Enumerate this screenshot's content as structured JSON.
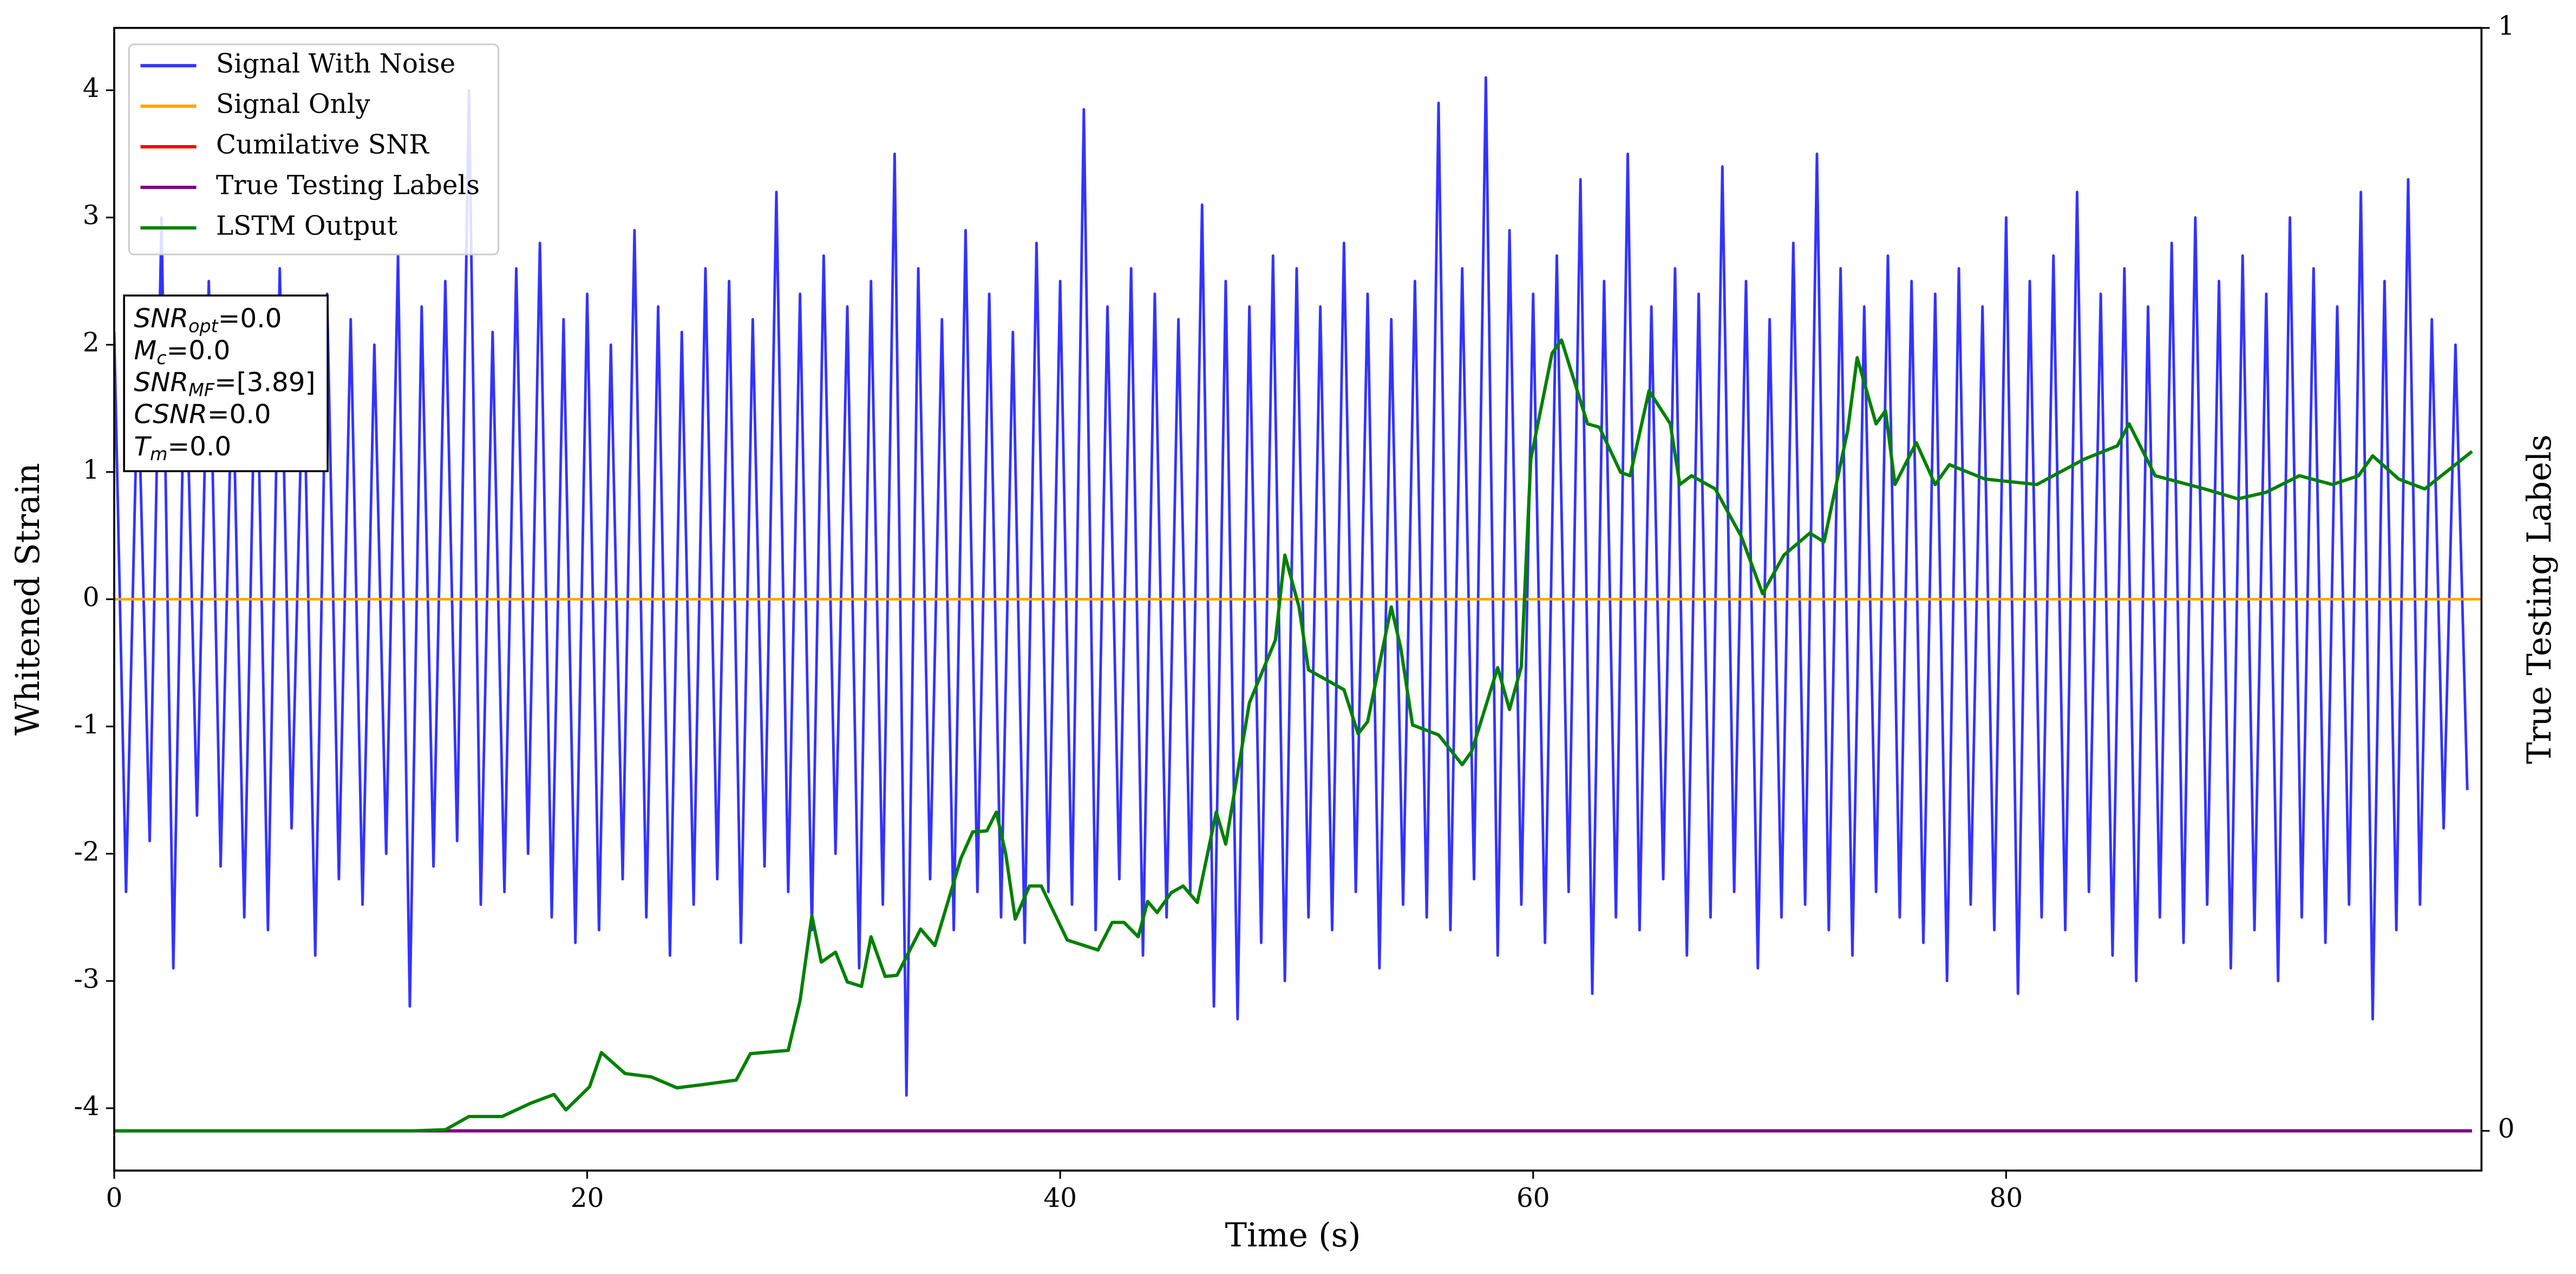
{
  "chart_data": {
    "type": "line",
    "xlabel": "Time (s)",
    "ylabel": "Whitened Strain",
    "y2label": "True Testing Labels",
    "xlim": [
      0,
      100.1
    ],
    "ylim": [
      -4.49,
      4.49
    ],
    "y2lim": [
      -0.036,
      1
    ],
    "xticks": [
      0,
      20,
      40,
      60,
      80
    ],
    "yticks": [
      -4,
      -3,
      -2,
      -1,
      0,
      1,
      2,
      3,
      4
    ],
    "y2ticks": [
      0,
      1
    ],
    "legend": "upper left",
    "annotations": [
      {
        "main": "SNR",
        "sub": "opt",
        "rest": "=0.0"
      },
      {
        "main": "M",
        "sub": "c",
        "rest": "=0.0"
      },
      {
        "main": "SNR",
        "sub": "MF",
        "rest": "=[3.89]"
      },
      {
        "main": "CSNR",
        "rest": "=0.0"
      },
      {
        "main": "T",
        "sub": "m",
        "rest": "=0.0"
      }
    ],
    "series": [
      {
        "name": "Signal With Noise",
        "color": "#3333ff",
        "x": [
          0,
          0.5,
          1,
          1.5,
          2,
          2.5,
          3,
          3.5,
          4,
          4.5,
          5,
          5.5,
          6,
          6.5,
          7,
          7.5,
          8,
          8.5,
          9,
          9.5,
          10,
          10.5,
          11,
          11.5,
          12,
          12.5,
          13,
          13.5,
          14,
          14.5,
          15,
          15.5,
          16,
          16.5,
          17,
          17.5,
          18,
          18.5,
          19,
          19.5,
          20,
          20.5,
          21,
          21.5,
          22,
          22.5,
          23,
          23.5,
          24,
          24.5,
          25,
          25.5,
          26,
          26.5,
          27,
          27.5,
          28,
          28.5,
          29,
          29.5,
          30,
          30.5,
          31,
          31.5,
          32,
          32.5,
          33,
          33.5,
          34,
          34.5,
          35,
          35.5,
          36,
          36.5,
          37,
          37.5,
          38,
          38.5,
          39,
          39.5,
          40,
          40.5,
          41,
          41.5,
          42,
          42.5,
          43,
          43.5,
          44,
          44.5,
          45,
          45.5,
          46,
          46.5,
          47,
          47.5,
          48,
          48.5,
          49,
          49.5,
          50,
          50.5,
          51,
          51.5,
          52,
          52.5,
          53,
          53.5,
          54,
          54.5,
          55,
          55.5,
          56,
          56.5,
          57,
          57.5,
          58,
          58.5,
          59,
          59.5,
          60,
          60.5,
          61,
          61.5,
          62,
          62.5,
          63,
          63.5,
          64,
          64.5,
          65,
          65.5,
          66,
          66.5,
          67,
          67.5,
          68,
          68.5,
          69,
          69.5,
          70,
          70.5,
          71,
          71.5,
          72,
          72.5,
          73,
          73.5,
          74,
          74.5,
          75,
          75.5,
          76,
          76.5,
          77,
          77.5,
          78,
          78.5,
          79,
          79.5,
          80,
          80.5,
          81,
          81.5,
          82,
          82.5,
          83,
          83.5,
          84,
          84.5,
          85,
          85.5,
          86,
          86.5,
          87,
          87.5,
          88,
          88.5,
          89,
          89.5,
          90,
          90.5,
          91,
          91.5,
          92,
          92.5,
          93,
          93.5,
          94,
          94.5,
          95,
          95.5,
          96,
          96.5,
          97,
          97.5,
          98,
          98.5,
          99,
          99.5
        ],
        "values": [
          2.1,
          -2.3,
          1.8,
          -1.9,
          3.0,
          -2.9,
          2.2,
          -1.7,
          2.5,
          -2.1,
          1.9,
          -2.5,
          2.3,
          -2.6,
          2.6,
          -1.8,
          2.0,
          -2.8,
          2.4,
          -2.2,
          2.2,
          -2.4,
          2.0,
          -2.0,
          2.7,
          -3.2,
          2.3,
          -2.1,
          2.5,
          -1.9,
          4.0,
          -2.4,
          2.1,
          -2.3,
          2.6,
          -2.0,
          2.8,
          -2.5,
          2.2,
          -2.7,
          2.4,
          -2.6,
          2.0,
          -2.2,
          2.9,
          -2.5,
          2.3,
          -2.8,
          2.1,
          -2.4,
          2.6,
          -2.2,
          2.5,
          -2.7,
          2.2,
          -2.1,
          3.2,
          -2.3,
          2.4,
          -2.6,
          2.7,
          -2.0,
          2.3,
          -2.9,
          2.5,
          -2.4,
          3.5,
          -3.9,
          2.6,
          -2.2,
          2.2,
          -2.6,
          2.9,
          -2.3,
          2.4,
          -2.5,
          2.1,
          -2.7,
          2.8,
          -2.3,
          2.5,
          -2.4,
          3.85,
          -2.6,
          2.3,
          -2.2,
          2.6,
          -2.8,
          2.4,
          -2.5,
          2.2,
          -2.3,
          3.1,
          -3.2,
          2.5,
          -3.3,
          2.3,
          -2.7,
          2.7,
          -3.0,
          2.6,
          -2.5,
          2.3,
          -2.6,
          2.8,
          -2.3,
          2.4,
          -2.9,
          2.2,
          -2.4,
          2.5,
          -2.5,
          3.9,
          -2.6,
          2.6,
          -2.2,
          4.1,
          -2.8,
          2.9,
          -2.4,
          2.4,
          -2.7,
          2.7,
          -2.3,
          3.3,
          -3.1,
          2.5,
          -2.5,
          3.5,
          -2.6,
          2.3,
          -2.2,
          2.6,
          -2.8,
          2.4,
          -2.5,
          3.4,
          -2.3,
          2.5,
          -2.9,
          2.2,
          -2.5,
          2.8,
          -2.4,
          3.5,
          -2.6,
          2.6,
          -2.8,
          2.3,
          -2.3,
          2.7,
          -2.5,
          2.5,
          -2.7,
          2.4,
          -3.0,
          2.6,
          -2.4,
          2.3,
          -2.6,
          3.0,
          -3.1,
          2.5,
          -2.5,
          2.7,
          -2.6,
          3.2,
          -2.3,
          2.4,
          -2.8,
          2.6,
          -3.0,
          2.3,
          -2.5,
          2.8,
          -2.7,
          3.0,
          -2.4,
          2.5,
          -2.9,
          2.7,
          -2.6,
          2.4,
          -3.0,
          3.0,
          -2.5,
          2.6,
          -2.7,
          2.3,
          -2.4,
          3.2,
          -3.3,
          2.5,
          -2.6,
          3.3,
          -2.4,
          2.2,
          -1.8,
          2.0,
          -1.5
        ]
      },
      {
        "name": "Signal Only",
        "color": "#ffa500",
        "x": [
          0,
          100.1
        ],
        "values": [
          0,
          0
        ]
      },
      {
        "name": "Cumilative SNR",
        "color": "#ff0000",
        "x": [],
        "values": []
      },
      {
        "name": "True Testing Labels",
        "color": "#800080",
        "axis": "y2",
        "x": [
          0,
          99.7
        ],
        "values": [
          0,
          0
        ]
      },
      {
        "name": "LSTM Output",
        "color": "#008000",
        "axis": "y2",
        "x": [
          0,
          12.6,
          14.0,
          15.0,
          16.4,
          17.6,
          18.6,
          19.1,
          20.1,
          20.6,
          21.6,
          22.7,
          23.8,
          24.9,
          26.3,
          26.9,
          28.5,
          29.0,
          29.5,
          29.9,
          30.5,
          31.0,
          31.6,
          32.0,
          32.6,
          33.1,
          34.1,
          34.7,
          35.8,
          36.3,
          36.9,
          37.3,
          37.7,
          38.1,
          38.7,
          39.2,
          40.3,
          41.6,
          42.2,
          42.7,
          43.3,
          43.7,
          44.1,
          44.7,
          45.2,
          45.8,
          46.6,
          47.0,
          48.0,
          49.1,
          49.5,
          50.1,
          50.5,
          52.0,
          52.6,
          53.0,
          54.0,
          54.4,
          54.9,
          56.0,
          57.0,
          57.4,
          58.5,
          59.0,
          59.5,
          59.9,
          60.8,
          61.2,
          62.3,
          62.8,
          63.7,
          64.1,
          64.9,
          65.8,
          66.2,
          66.7,
          67.7,
          68.8,
          69.7,
          70.6,
          71.7,
          72.3,
          73.3,
          73.7,
          74.5,
          74.9,
          75.3,
          76.2,
          77.0,
          77.6,
          79.1,
          81.3,
          83.3,
          84.7,
          85.2,
          86.3,
          88.4,
          89.8,
          91.0,
          92.4,
          93.8,
          94.9,
          95.5,
          96.6,
          97.7,
          99.7
        ],
        "values": [
          0,
          0,
          0.001,
          0.013,
          0.013,
          0.025,
          0.033,
          0.019,
          0.04,
          0.071,
          0.052,
          0.049,
          0.039,
          0.042,
          0.046,
          0.07,
          0.073,
          0.118,
          0.195,
          0.153,
          0.162,
          0.135,
          0.131,
          0.176,
          0.14,
          0.141,
          0.183,
          0.168,
          0.247,
          0.271,
          0.272,
          0.289,
          0.251,
          0.192,
          0.222,
          0.222,
          0.173,
          0.164,
          0.189,
          0.189,
          0.176,
          0.208,
          0.198,
          0.216,
          0.222,
          0.207,
          0.289,
          0.26,
          0.388,
          0.445,
          0.522,
          0.475,
          0.418,
          0.4,
          0.36,
          0.371,
          0.475,
          0.438,
          0.368,
          0.359,
          0.332,
          0.344,
          0.42,
          0.382,
          0.421,
          0.609,
          0.705,
          0.717,
          0.641,
          0.638,
          0.597,
          0.594,
          0.671,
          0.641,
          0.586,
          0.594,
          0.582,
          0.539,
          0.487,
          0.522,
          0.542,
          0.534,
          0.635,
          0.701,
          0.641,
          0.653,
          0.586,
          0.624,
          0.586,
          0.604,
          0.591,
          0.586,
          0.609,
          0.621,
          0.641,
          0.594,
          0.582,
          0.573,
          0.579,
          0.594,
          0.586,
          0.594,
          0.612,
          0.591,
          0.582,
          0.616
        ]
      }
    ]
  }
}
